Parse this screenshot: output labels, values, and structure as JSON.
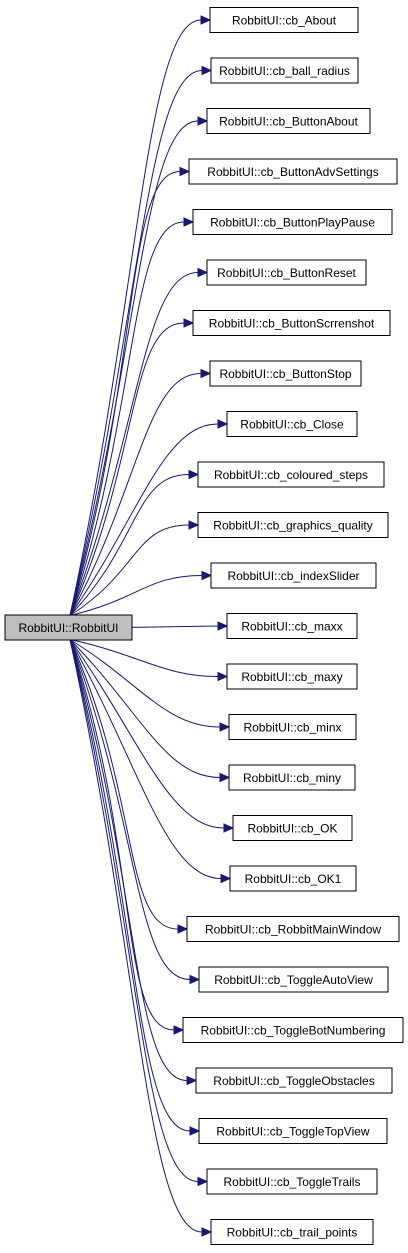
{
  "graph": {
    "root": {
      "label": "RobbitUI::RobbitUI"
    },
    "colors": {
      "edge": "#191970",
      "root_fill": "#bfbfbf",
      "node_fill": "#ffffff",
      "border": "#000000"
    },
    "callees": [
      {
        "label": "RobbitUI::cb_About"
      },
      {
        "label": "RobbitUI::cb_ball_radius"
      },
      {
        "label": "RobbitUI::cb_ButtonAbout"
      },
      {
        "label": "RobbitUI::cb_ButtonAdvSettings"
      },
      {
        "label": "RobbitUI::cb_ButtonPlayPause"
      },
      {
        "label": "RobbitUI::cb_ButtonReset"
      },
      {
        "label": "RobbitUI::cb_ButtonScrrenshot"
      },
      {
        "label": "RobbitUI::cb_ButtonStop"
      },
      {
        "label": "RobbitUI::cb_Close"
      },
      {
        "label": "RobbitUI::cb_coloured_steps"
      },
      {
        "label": "RobbitUI::cb_graphics_quality"
      },
      {
        "label": "RobbitUI::cb_indexSlider"
      },
      {
        "label": "RobbitUI::cb_maxx"
      },
      {
        "label": "RobbitUI::cb_maxy"
      },
      {
        "label": "RobbitUI::cb_minx"
      },
      {
        "label": "RobbitUI::cb_miny"
      },
      {
        "label": "RobbitUI::cb_OK"
      },
      {
        "label": "RobbitUI::cb_OK1"
      },
      {
        "label": "RobbitUI::cb_RobbitMainWindow"
      },
      {
        "label": "RobbitUI::cb_ToggleAutoView"
      },
      {
        "label": "RobbitUI::cb_ToggleBotNumbering"
      },
      {
        "label": "RobbitUI::cb_ToggleObstacles"
      },
      {
        "label": "RobbitUI::cb_ToggleTopView"
      },
      {
        "label": "RobbitUI::cb_ToggleTrails"
      },
      {
        "label": "RobbitUI::cb_trail_points"
      }
    ]
  }
}
